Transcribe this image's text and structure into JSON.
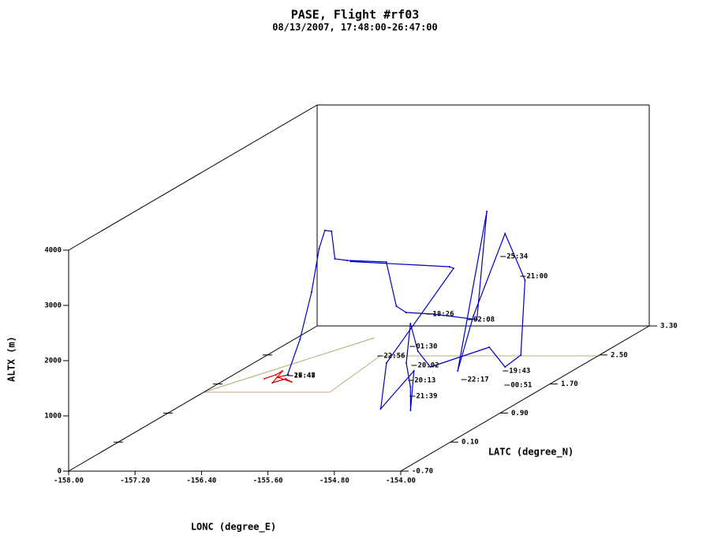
{
  "chart_data": {
    "type": "line3d",
    "title": "PASE, Flight #rf03",
    "subtitle": "08/13/2007, 17:48:00-26:47:00",
    "x_label": "LONC (degree_E)",
    "y_label": "LATC (degree_N)",
    "z_label": "ALTX (m)",
    "xlim": [
      -158,
      -154
    ],
    "xticks": [
      {
        "value": -158,
        "label": "-158.00"
      },
      {
        "value": -157.2,
        "label": "-157.20"
      },
      {
        "value": -156.4,
        "label": "-156.40"
      },
      {
        "value": -155.6,
        "label": "-155.60"
      },
      {
        "value": -154.8,
        "label": "-154.80"
      },
      {
        "value": -154,
        "label": "-154.00"
      }
    ],
    "ylim": [
      -0.7,
      3.3
    ],
    "yticks": [
      {
        "value": -0.7,
        "label": "-0.70"
      },
      {
        "value": 0.1,
        "label": "0.10"
      },
      {
        "value": 0.9,
        "label": "0.90"
      },
      {
        "value": 1.7,
        "label": "1.70"
      },
      {
        "value": 2.5,
        "label": "2.50"
      },
      {
        "value": 3.3,
        "label": "3.30"
      }
    ],
    "zlim": [
      0,
      4000
    ],
    "zticks": [
      0,
      1000,
      2000,
      3000,
      4000
    ],
    "series": [
      {
        "color": "#e00000",
        "lon": [
          -157.44,
          -157.3,
          -157.22,
          -157.34,
          -157.18,
          -157.11,
          -157.28,
          -157.15
        ],
        "lat": [
          1.7,
          1.7,
          1.7,
          1.7,
          1.7,
          1.7,
          1.7,
          1.7
        ],
        "alt": [
          94,
          166,
          237,
          23,
          94,
          37,
          123,
          166
        ]
      },
      {
        "color": "#0000c0",
        "lon": [
          -156.86,
          -156.71,
          -156.57,
          -156.48,
          -156.41,
          -156.33,
          -156.29,
          -156.14,
          -155.67,
          -155.55,
          -155.43,
          -155.1,
          -154.58,
          -154.46,
          -154.81,
          -154.62,
          -154.24,
          -154.0,
          -154.05,
          -154.24,
          -154.43,
          -155.14,
          -155.29,
          -155.38,
          -155.43,
          -155.38,
          -154.63,
          -154.59,
          -154.99,
          -154.92,
          -154.86,
          -154.91,
          -156.1
        ],
        "lat": [
          1.3,
          1.3,
          1.3,
          1.3,
          1.3,
          1.3,
          1.3,
          1.3,
          1.3,
          1.3,
          1.3,
          1.3,
          1.3,
          1.3,
          1.3,
          1.3,
          1.3,
          1.3,
          1.3,
          1.3,
          1.3,
          1.3,
          1.3,
          1.3,
          1.3,
          1.3,
          0.3,
          0.3,
          0.3,
          0.3,
          1.3,
          1.3,
          1.3
        ],
        "alt": [
          429,
          1071,
          1929,
          2714,
          3043,
          3029,
          2529,
          2500,
          2471,
          1671,
          1557,
          1529,
          1429,
          3386,
          500,
          1500,
          2986,
          2143,
          786,
          571,
          929,
          571,
          857,
          1357,
          643,
          214,
          443,
          1157,
          471,
          1300,
          2357,
          2386,
          2480
        ]
      }
    ],
    "annotations": [
      {
        "text": "25:34",
        "lon": -154.27,
        "lat": 1.3,
        "alt": 2571
      },
      {
        "text": "21:00",
        "lon": -154.03,
        "lat": 1.3,
        "alt": 2214
      },
      {
        "text": "18:26",
        "lon": -155.16,
        "lat": 1.3,
        "alt": 1529
      },
      {
        "text": "02:08",
        "lon": -154.67,
        "lat": 1.3,
        "alt": 1429
      },
      {
        "text": "01:30",
        "lon": -155.36,
        "lat": 1.3,
        "alt": 943
      },
      {
        "text": "22:56",
        "lon": -155.75,
        "lat": 1.3,
        "alt": 771
      },
      {
        "text": "20:02",
        "lon": -155.34,
        "lat": 1.3,
        "alt": 600
      },
      {
        "text": "19:43",
        "lon": -154.24,
        "lat": 1.3,
        "alt": 500
      },
      {
        "text": "00:51",
        "lon": -154.22,
        "lat": 1.3,
        "alt": 243
      },
      {
        "text": "22:17",
        "lon": -154.74,
        "lat": 1.3,
        "alt": 343
      },
      {
        "text": "20:13",
        "lon": -155.38,
        "lat": 1.3,
        "alt": 329
      },
      {
        "text": "21:39",
        "lon": -155.36,
        "lat": 1.3,
        "alt": 43
      },
      {
        "text": "17:48",
        "lon": -156.83,
        "lat": 1.3,
        "alt": 414
      },
      {
        "text": "26:47",
        "lon": -156.83,
        "lat": 1.3,
        "alt": 414
      }
    ]
  }
}
